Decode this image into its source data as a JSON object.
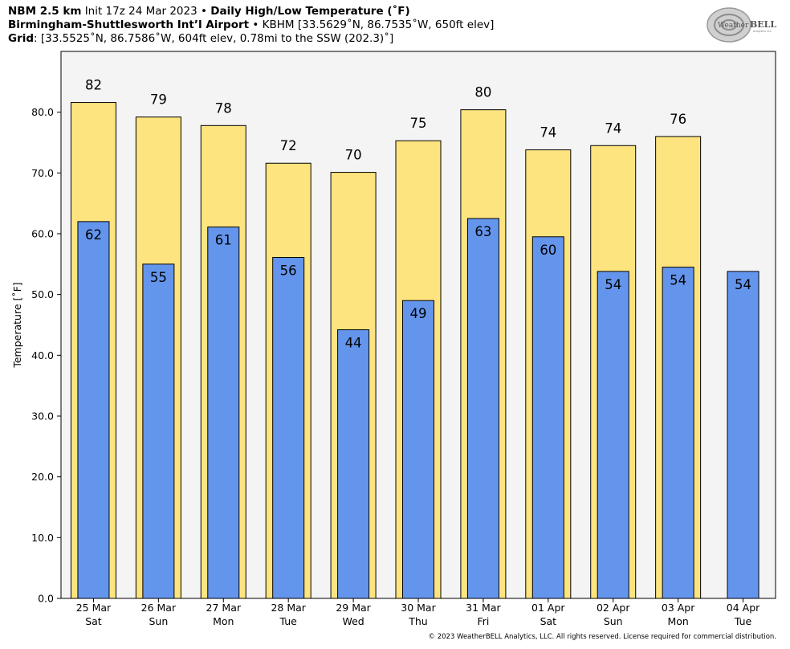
{
  "header": {
    "line1_bold_a": "NBM 2.5 km",
    "line1_init": "Init 17z 24 Mar 2023",
    "line1_sep": " • ",
    "line1_bold_b": "Daily High/Low Temperature (˚F)",
    "line2_bold": "Birmingham-Shuttlesworth Int’l Airport",
    "line2_rest": " • KBHM [33.5629˚N, 86.7535˚W, 650ft elev]",
    "line3_bold": "Grid",
    "line3_rest": ": [33.5525˚N, 86.7586˚W, 604ft elev, 0.78mi to the SSW (202.3)˚]"
  },
  "logo": {
    "text_a": "Weather",
    "text_b": "BELL",
    "sub": "Analytics LLC"
  },
  "footer": {
    "text": "© 2023 WeatherBELL Analytics, LLC. All rights reserved. License required for commercial distribution."
  },
  "colors": {
    "high": "#fde47f",
    "low": "#6495ed",
    "plot_bg": "#f4f4f4",
    "edge": "#000000"
  },
  "chart_data": {
    "type": "bar",
    "title": "Daily High/Low Temperature (˚F)",
    "xlabel": "",
    "ylabel": "Temperature [˚F]",
    "ylim": [
      0,
      90
    ],
    "yticks": [
      "0.0",
      "10.0",
      "20.0",
      "30.0",
      "40.0",
      "50.0",
      "60.0",
      "70.0",
      "80.0"
    ],
    "categories": [
      {
        "date": "25 Mar",
        "day": "Sat"
      },
      {
        "date": "26 Mar",
        "day": "Sun"
      },
      {
        "date": "27 Mar",
        "day": "Mon"
      },
      {
        "date": "28 Mar",
        "day": "Tue"
      },
      {
        "date": "29 Mar",
        "day": "Wed"
      },
      {
        "date": "30 Mar",
        "day": "Thu"
      },
      {
        "date": "31 Mar",
        "day": "Fri"
      },
      {
        "date": "01 Apr",
        "day": "Sat"
      },
      {
        "date": "02 Apr",
        "day": "Sun"
      },
      {
        "date": "03 Apr",
        "day": "Mon"
      },
      {
        "date": "04 Apr",
        "day": "Tue"
      }
    ],
    "series": [
      {
        "name": "High",
        "values": [
          81.6,
          79.2,
          77.8,
          71.6,
          70.1,
          75.3,
          80.4,
          73.8,
          74.5,
          76.0,
          null
        ],
        "labels": [
          "82",
          "79",
          "78",
          "72",
          "70",
          "75",
          "80",
          "74",
          "74",
          "76",
          ""
        ]
      },
      {
        "name": "Low",
        "values": [
          62.0,
          55.0,
          61.1,
          56.1,
          44.2,
          49.0,
          62.5,
          59.5,
          53.8,
          54.5,
          53.8
        ],
        "labels": [
          "62",
          "55",
          "61",
          "56",
          "44",
          "49",
          "63",
          "60",
          "54",
          "54",
          "54"
        ]
      }
    ],
    "grid": false,
    "legend": "none"
  }
}
